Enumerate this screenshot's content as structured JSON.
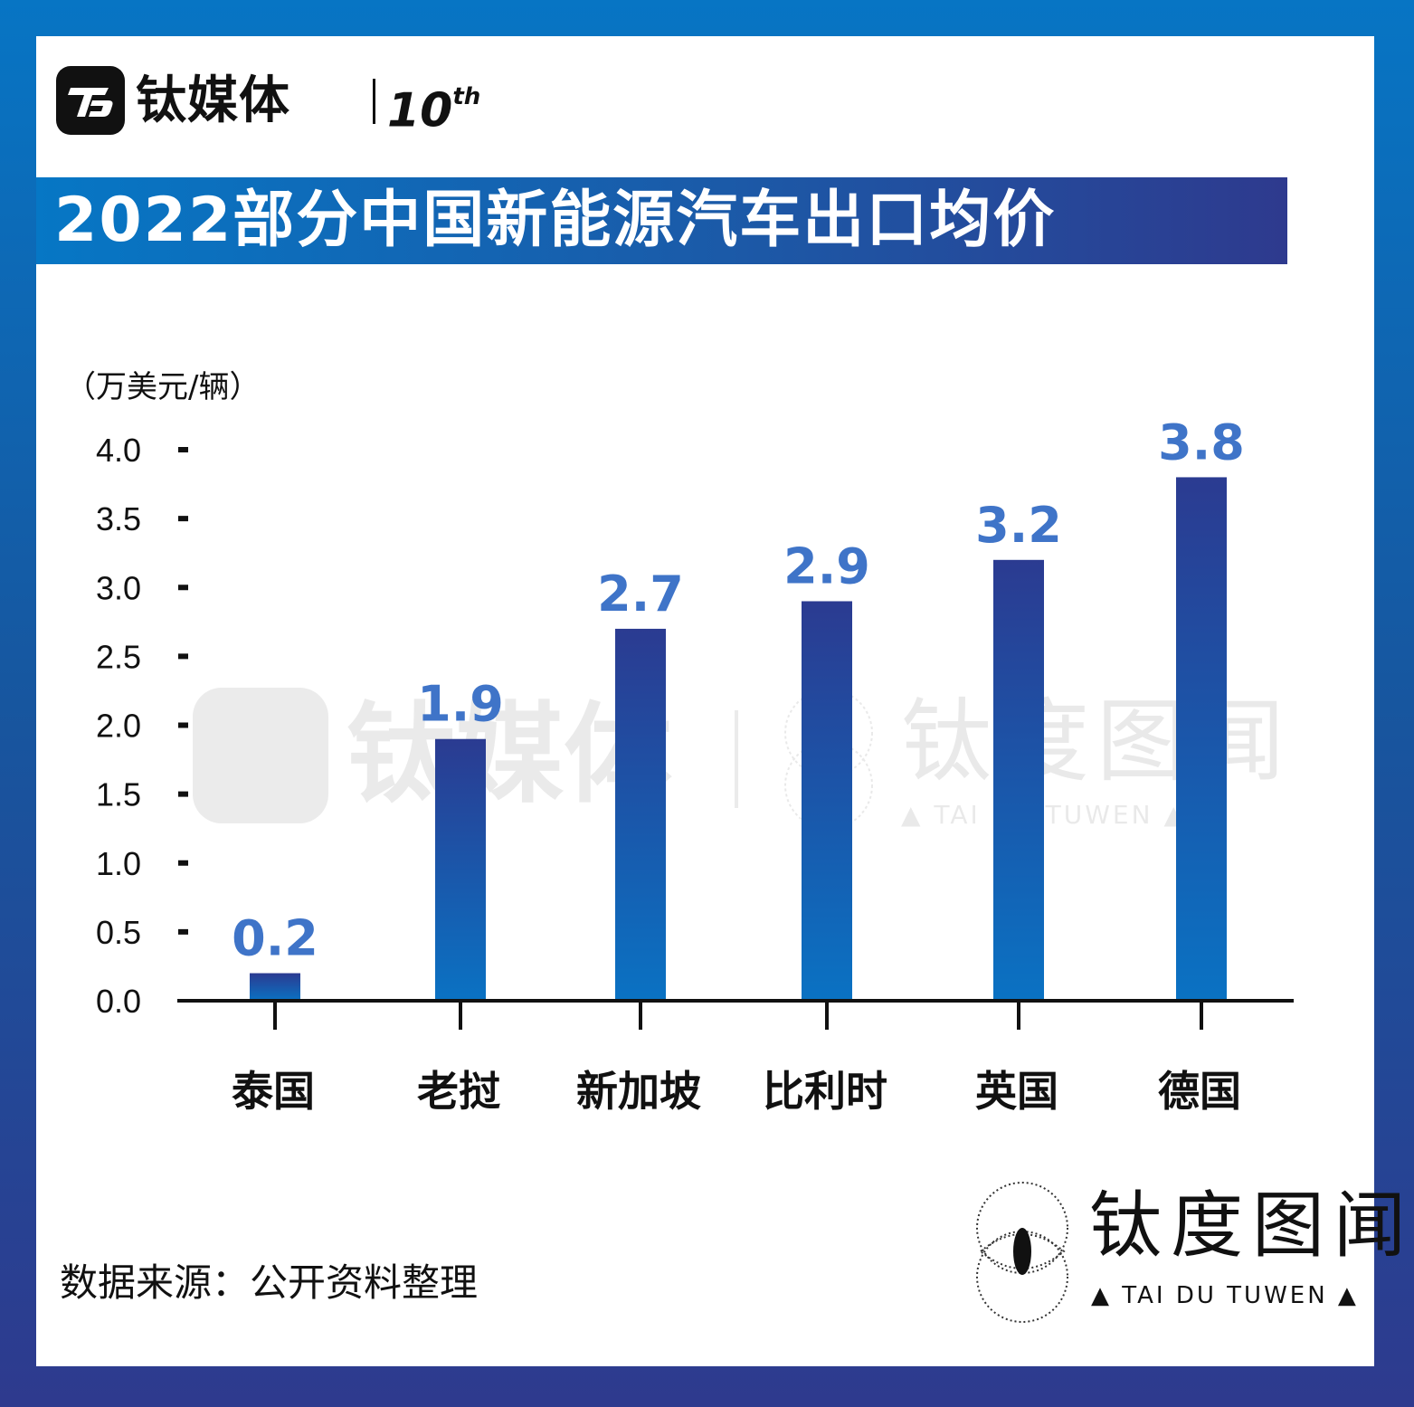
{
  "brand": {
    "name": "钛媒体",
    "tenth": "10",
    "tenth_suffix": "th"
  },
  "title": "2022部分中国新能源汽车出口均价",
  "unit_label": "（万美元/辆）",
  "source": "数据来源：公开资料整理",
  "watermark": {
    "name": "钛度图闻",
    "sub": "▲ TAI DU TUWEN ▲",
    "center_brand": "钛媒体"
  },
  "colors": {
    "bar_top": "#2b3b91",
    "bar_bottom": "#0a72c3",
    "label": "#3f74c8",
    "title_bg_start": "#0677c5",
    "title_bg_end": "#2e3a8e"
  },
  "chart_data": {
    "type": "bar",
    "title": "2022部分中国新能源汽车出口均价",
    "ylabel": "（万美元/辆）",
    "xlabel": "",
    "categories": [
      "泰国",
      "老挝",
      "新加坡",
      "比利时",
      "英国",
      "德国"
    ],
    "values": [
      0.2,
      1.9,
      2.7,
      2.9,
      3.2,
      3.8
    ],
    "value_labels": [
      "0.2",
      "1.9",
      "2.7",
      "2.9",
      "3.2",
      "3.8"
    ],
    "yticks": [
      "0.0",
      "0.5",
      "1.0",
      "1.5",
      "2.0",
      "2.5",
      "3.0",
      "3.5",
      "4.0"
    ],
    "ylim": [
      0,
      4.0
    ],
    "grid": false,
    "legend": "none"
  }
}
